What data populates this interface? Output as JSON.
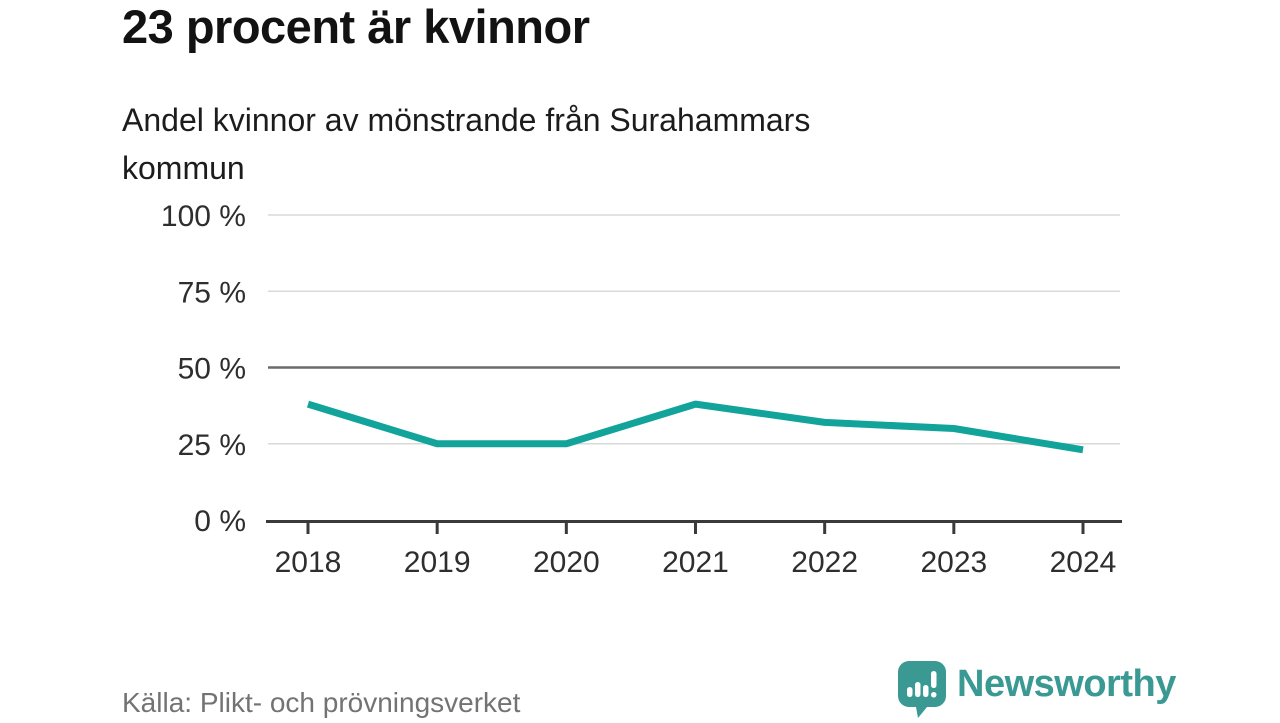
{
  "chart_data": {
    "type": "line",
    "title": "23 procent är kvinnor",
    "subtitle": "Andel kvinnor av mönstrande från Surahammars kommun",
    "x": [
      "2018",
      "2019",
      "2020",
      "2021",
      "2022",
      "2023",
      "2024"
    ],
    "series": [
      {
        "name": "Andel kvinnor av mönstrande",
        "values": [
          38,
          25,
          25,
          38,
          32,
          30,
          23
        ]
      }
    ],
    "unit": "%",
    "ylim": [
      0,
      100
    ],
    "yticks": [
      0,
      25,
      50,
      75,
      100
    ],
    "ytick_suffix": " %",
    "grid": true,
    "highlight_gridline": 50,
    "legend": "none",
    "line_color": "#12a39a",
    "source": "Källa: Plikt- och prövningsverket"
  },
  "branding": {
    "logo_text": "Newsworthy",
    "logo_color": "#3a9a93",
    "icon_name": "newsworthy-chart-bubble-icon"
  }
}
